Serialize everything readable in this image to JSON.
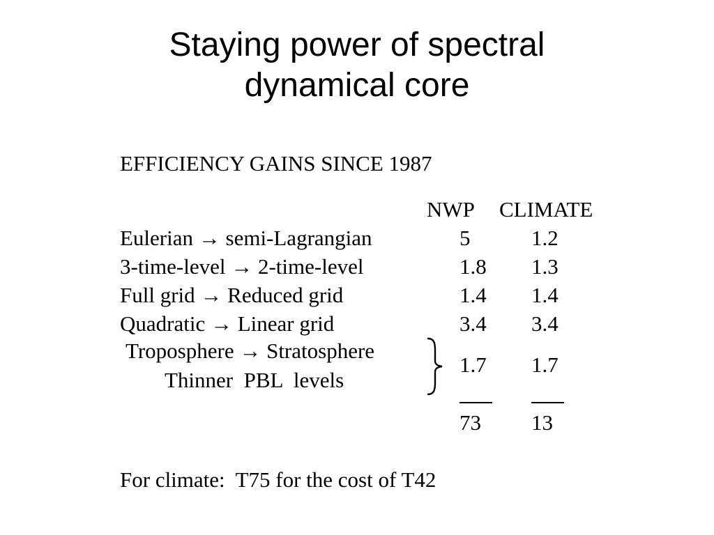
{
  "slide": {
    "title_line1": "Staying power of spectral",
    "title_line2": "dynamical core"
  },
  "table": {
    "heading": "EFFICIENCY GAINS SINCE 1987",
    "col_nwp": "NWP",
    "col_climate": "CLIMATE",
    "rows": [
      {
        "label": "Eulerian → semi-Lagrangian",
        "nwp": "5",
        "climate": "1.2"
      },
      {
        "label": "3-time-level → 2-time-level",
        "nwp": "1.8",
        "climate": "1.3"
      },
      {
        "label": "Full grid → Reduced grid",
        "nwp": "1.4",
        "climate": "1.4"
      },
      {
        "label": "Quadratic → Linear grid",
        "nwp": "3.4",
        "climate": "3.4"
      }
    ],
    "grouped": {
      "label1": "Troposphere → Stratosphere",
      "label2": "Thinner  PBL  levels",
      "nwp": "1.7",
      "climate": "1.7"
    },
    "total": {
      "nwp": "73",
      "climate": "13"
    }
  },
  "footer": "For climate:  T75 for the cost of T42"
}
